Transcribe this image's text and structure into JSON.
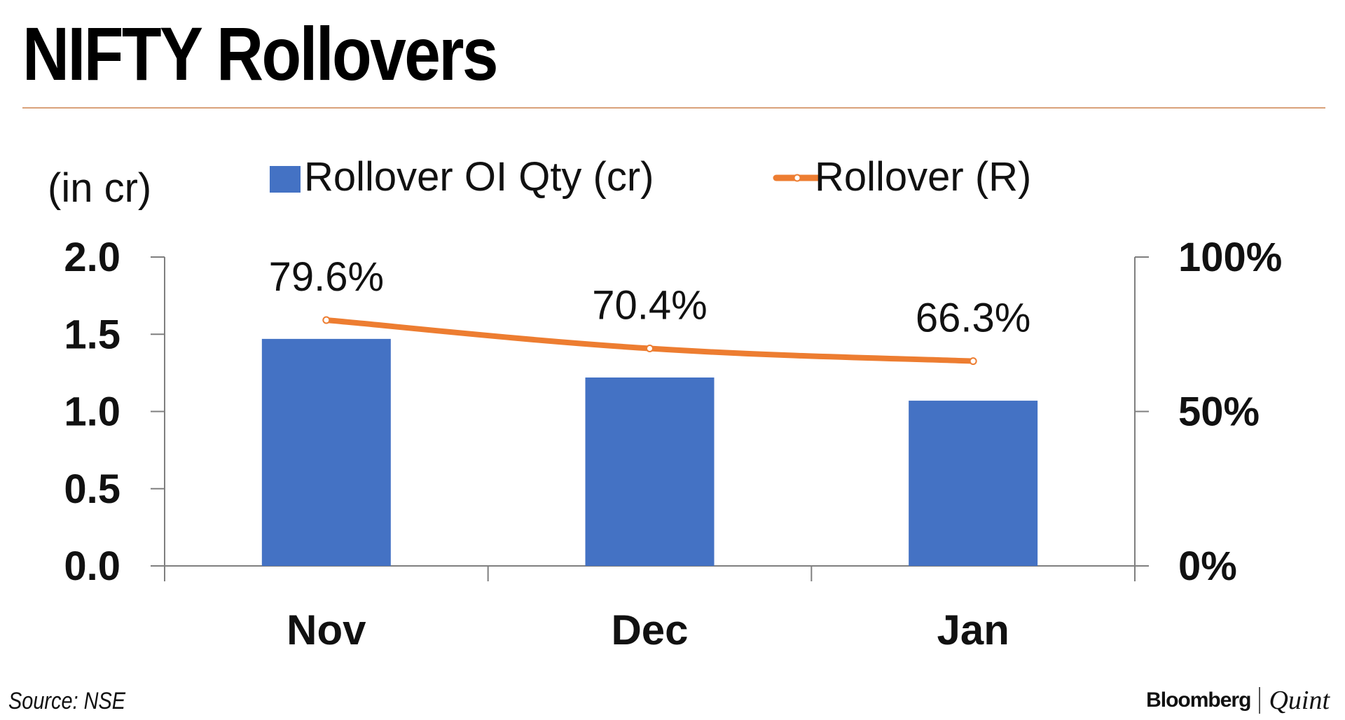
{
  "header": {
    "title": "NIFTY Rollovers"
  },
  "footer": {
    "source": "Source: NSE",
    "brand_primary": "Bloomberg",
    "brand_secondary": "Quint"
  },
  "chart_data": {
    "type": "bar",
    "categories": [
      "Nov",
      "Dec",
      "Jan"
    ],
    "y_left_label": "(in cr)",
    "y_left_lim": [
      0,
      2.0
    ],
    "y_left_ticks": [
      "0.0",
      "0.5",
      "1.0",
      "1.5",
      "2.0"
    ],
    "y_right_lim": [
      0,
      100
    ],
    "y_right_ticks": [
      "0%",
      "50%",
      "100%"
    ],
    "grid": false,
    "legend_position": "top",
    "series": [
      {
        "name": "Rollover OI Qty (cr)",
        "type": "bar",
        "axis": "left",
        "color": "#4472c4",
        "values": [
          1.47,
          1.22,
          1.07
        ]
      },
      {
        "name": "Rollover (R)",
        "type": "line",
        "axis": "right",
        "color": "#ed7d31",
        "values": [
          79.6,
          70.4,
          66.3
        ],
        "labels": [
          "79.6%",
          "70.4%",
          "66.3%"
        ]
      }
    ]
  }
}
